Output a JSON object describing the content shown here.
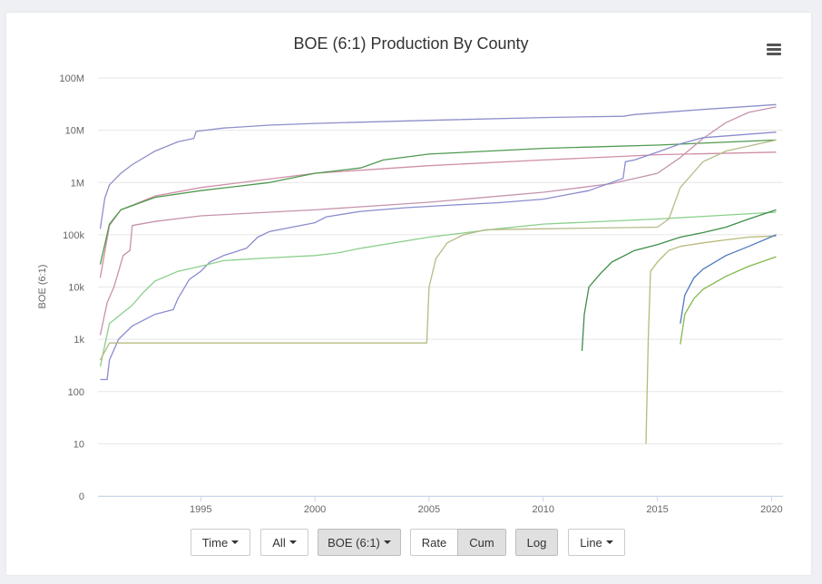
{
  "chart_data": {
    "type": "line",
    "title": "BOE (6:1) Production By County",
    "ylabel": "BOE (6:1)",
    "xlabel": "",
    "y_scale": "log",
    "ylim": [
      1,
      100000000
    ],
    "xlim": [
      1990.5,
      2020.5
    ],
    "x_ticks": [
      "1995",
      "2000",
      "2005",
      "2010",
      "2015",
      "2020"
    ],
    "y_ticks": [
      "0",
      "10",
      "100",
      "1k",
      "10k",
      "100k",
      "1M",
      "10M",
      "100M"
    ],
    "grid": true,
    "legend": "none",
    "series": [
      {
        "color": "#8e8fc9",
        "points": [
          [
            1990.6,
            130000
          ],
          [
            1990.8,
            500000
          ],
          [
            1991.0,
            900000
          ],
          [
            1991.5,
            1500000
          ],
          [
            1992,
            2200000
          ],
          [
            1993,
            4000000
          ],
          [
            1994,
            6000000
          ],
          [
            1994.7,
            7000000
          ],
          [
            1994.8,
            9500000
          ],
          [
            1996,
            11000000
          ],
          [
            1998,
            12500000
          ],
          [
            2000,
            13500000
          ],
          [
            2005,
            15500000
          ],
          [
            2010,
            17500000
          ],
          [
            2013.5,
            18500000
          ],
          [
            2014,
            20000000
          ],
          [
            2017,
            25000000
          ],
          [
            2020.2,
            31000000
          ]
        ]
      },
      {
        "color": "#cf8fa6",
        "points": [
          [
            1990.6,
            15000
          ],
          [
            1991,
            150000
          ],
          [
            1991.5,
            300000
          ],
          [
            1993,
            550000
          ],
          [
            1995,
            800000
          ],
          [
            2000,
            1500000
          ],
          [
            2005,
            2100000
          ],
          [
            2010,
            2700000
          ],
          [
            2015,
            3400000
          ],
          [
            2020.2,
            3800000
          ]
        ]
      },
      {
        "color": "#4f9a4f",
        "points": [
          [
            1990.6,
            27000
          ],
          [
            1991,
            160000
          ],
          [
            1991.5,
            300000
          ],
          [
            1993,
            520000
          ],
          [
            1995,
            700000
          ],
          [
            1998,
            1000000
          ],
          [
            2000,
            1500000
          ],
          [
            2002,
            1900000
          ],
          [
            2003,
            2700000
          ],
          [
            2005,
            3500000
          ],
          [
            2010,
            4500000
          ],
          [
            2015,
            5200000
          ],
          [
            2020.2,
            6500000
          ]
        ]
      },
      {
        "color": "#c593ac",
        "points": [
          [
            1990.6,
            1200
          ],
          [
            1990.9,
            5000
          ],
          [
            1991.2,
            10000
          ],
          [
            1991.4,
            20000
          ],
          [
            1991.6,
            40000
          ],
          [
            1991.9,
            50000
          ],
          [
            1992,
            150000
          ],
          [
            1993,
            180000
          ],
          [
            1995,
            230000
          ],
          [
            2000,
            300000
          ],
          [
            2005,
            420000
          ],
          [
            2010,
            650000
          ],
          [
            2013,
            950000
          ],
          [
            2015,
            1500000
          ],
          [
            2016,
            3000000
          ],
          [
            2017,
            7000000
          ],
          [
            2018,
            14000000
          ],
          [
            2019,
            22000000
          ],
          [
            2020.2,
            28000000
          ]
        ]
      },
      {
        "color": "#8a8ccf",
        "points": [
          [
            1990.6,
            170
          ],
          [
            1990.9,
            170
          ],
          [
            1991,
            400
          ],
          [
            1991.4,
            1000
          ],
          [
            1992,
            1800
          ],
          [
            1993,
            3000
          ],
          [
            1993.8,
            3700
          ],
          [
            1994,
            6000
          ],
          [
            1994.5,
            14000
          ],
          [
            1995,
            20000
          ],
          [
            1995.4,
            30000
          ],
          [
            1996,
            40000
          ],
          [
            1997,
            55000
          ],
          [
            1997.5,
            90000
          ],
          [
            1998,
            115000
          ],
          [
            1999,
            140000
          ],
          [
            2000,
            170000
          ],
          [
            2000.5,
            220000
          ],
          [
            2002,
            280000
          ],
          [
            2004,
            330000
          ],
          [
            2006,
            370000
          ],
          [
            2008,
            410000
          ],
          [
            2010,
            480000
          ],
          [
            2012,
            700000
          ],
          [
            2013.5,
            1200000
          ],
          [
            2013.6,
            2500000
          ],
          [
            2014,
            2700000
          ],
          [
            2015,
            3800000
          ],
          [
            2016,
            5500000
          ],
          [
            2017,
            7200000
          ],
          [
            2020.2,
            9200000
          ]
        ]
      },
      {
        "color": "#8ccf8c",
        "points": [
          [
            1990.6,
            300
          ],
          [
            1991,
            2000
          ],
          [
            1991.5,
            3000
          ],
          [
            1992,
            4500
          ],
          [
            1992.5,
            8000
          ],
          [
            1993,
            13000
          ],
          [
            1994,
            20000
          ],
          [
            1995,
            25000
          ],
          [
            1996,
            32000
          ],
          [
            1998,
            36000
          ],
          [
            2000,
            40000
          ],
          [
            2001,
            45000
          ],
          [
            2002,
            55000
          ],
          [
            2005,
            90000
          ],
          [
            2008,
            130000
          ],
          [
            2010,
            160000
          ],
          [
            2015,
            200000
          ],
          [
            2020.2,
            270000
          ]
        ]
      },
      {
        "color": "#b6ba86",
        "points": [
          [
            1990.6,
            400
          ],
          [
            1991,
            850
          ],
          [
            2004.9,
            850
          ],
          [
            2005,
            10000
          ],
          [
            2005.3,
            35000
          ],
          [
            2005.8,
            70000
          ],
          [
            2006.5,
            100000
          ],
          [
            2007.5,
            125000
          ],
          [
            2010,
            130000
          ],
          [
            2015,
            140000
          ],
          [
            2015.5,
            200000
          ],
          [
            2016,
            800000
          ],
          [
            2017,
            2500000
          ],
          [
            2018,
            4000000
          ],
          [
            2020.2,
            6500000
          ]
        ]
      },
      {
        "color": "#3e8e48",
        "points": [
          [
            2011.7,
            600
          ],
          [
            2011.8,
            3000
          ],
          [
            2012,
            10000
          ],
          [
            2012.5,
            18000
          ],
          [
            2013,
            30000
          ],
          [
            2014,
            50000
          ],
          [
            2015,
            65000
          ],
          [
            2016,
            90000
          ],
          [
            2017,
            110000
          ],
          [
            2018,
            140000
          ],
          [
            2019,
            200000
          ],
          [
            2020.2,
            300000
          ]
        ]
      },
      {
        "color": "#b8ba7a",
        "points": [
          [
            2014.5,
            10
          ],
          [
            2014.6,
            1000
          ],
          [
            2014.7,
            20000
          ],
          [
            2015,
            30000
          ],
          [
            2015.5,
            50000
          ],
          [
            2016,
            60000
          ],
          [
            2017,
            70000
          ],
          [
            2018,
            80000
          ],
          [
            2019,
            90000
          ],
          [
            2020.2,
            95000
          ]
        ]
      },
      {
        "color": "#4e79bf",
        "points": [
          [
            2016,
            2000
          ],
          [
            2016.2,
            7000
          ],
          [
            2016.6,
            15000
          ],
          [
            2017,
            22000
          ],
          [
            2018,
            40000
          ],
          [
            2019,
            60000
          ],
          [
            2020.2,
            100000
          ]
        ]
      },
      {
        "color": "#82b84a",
        "points": [
          [
            2016,
            800
          ],
          [
            2016.2,
            3000
          ],
          [
            2016.6,
            6000
          ],
          [
            2017,
            9000
          ],
          [
            2018,
            16000
          ],
          [
            2019,
            25000
          ],
          [
            2020.2,
            38000
          ]
        ]
      }
    ]
  },
  "controls": {
    "time": "Time",
    "all": "All",
    "boe": "BOE (6:1)",
    "rate": "Rate",
    "cum": "Cum",
    "log": "Log",
    "line": "Line"
  }
}
